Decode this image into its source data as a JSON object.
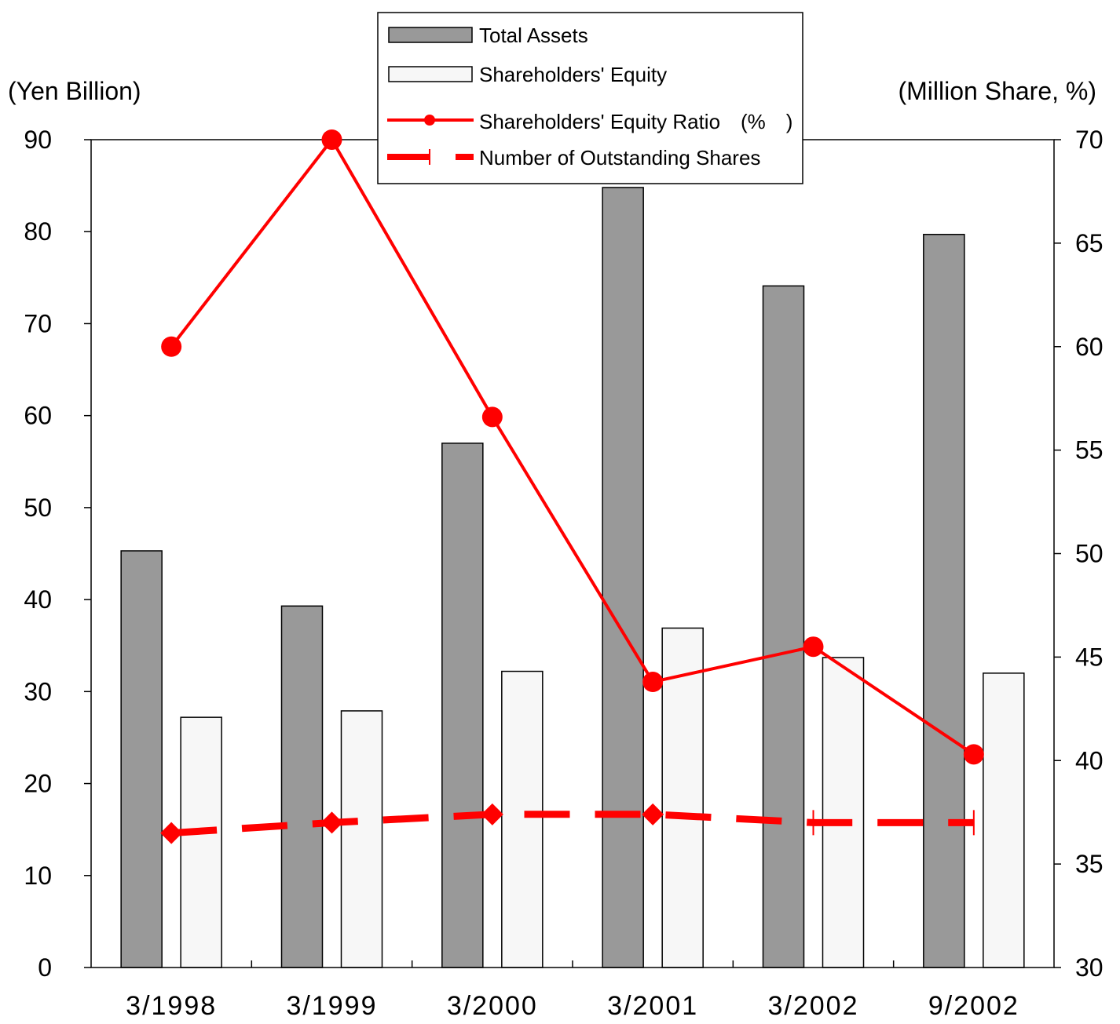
{
  "chart_data": {
    "type": "bar",
    "categories": [
      "3/1998",
      "3/1999",
      "3/2000",
      "3/2001",
      "3/2002",
      "9/2002"
    ],
    "left_axis": {
      "label": "(Yen Billion)",
      "min": 0,
      "max": 90,
      "ticks": [
        "0",
        "10",
        "20",
        "30",
        "40",
        "50",
        "60",
        "70",
        "80",
        "90"
      ]
    },
    "right_axis": {
      "label": "(Million Share, %)",
      "min": 30,
      "max": 70,
      "ticks": [
        "30",
        "35",
        "40",
        "45",
        "50",
        "55",
        "60",
        "65",
        "70"
      ]
    },
    "series": [
      {
        "name": "Total Assets",
        "kind": "bar",
        "axis": "left",
        "color": "#999999",
        "values": [
          45.3,
          39.3,
          57.0,
          84.8,
          74.1,
          79.7
        ]
      },
      {
        "name": "Shareholders' Equity",
        "kind": "bar",
        "axis": "left",
        "color": "#f7f7f7",
        "values": [
          27.2,
          27.9,
          32.2,
          36.9,
          33.7,
          32.0
        ]
      },
      {
        "name": "Shareholders' Equity Ratio　(%　)",
        "kind": "line",
        "axis": "right",
        "color": "#ff0000",
        "marker": "circle",
        "values": [
          60.0,
          70.0,
          56.6,
          43.8,
          45.5,
          40.3
        ]
      },
      {
        "name": "Number of Outstanding Shares",
        "kind": "dashed-line",
        "axis": "right",
        "color": "#ff0000",
        "marker": "diamond",
        "values": [
          36.5,
          37.0,
          37.4,
          37.4,
          37.0,
          37.0
        ]
      }
    ],
    "grid": false,
    "legend": "top-center"
  }
}
